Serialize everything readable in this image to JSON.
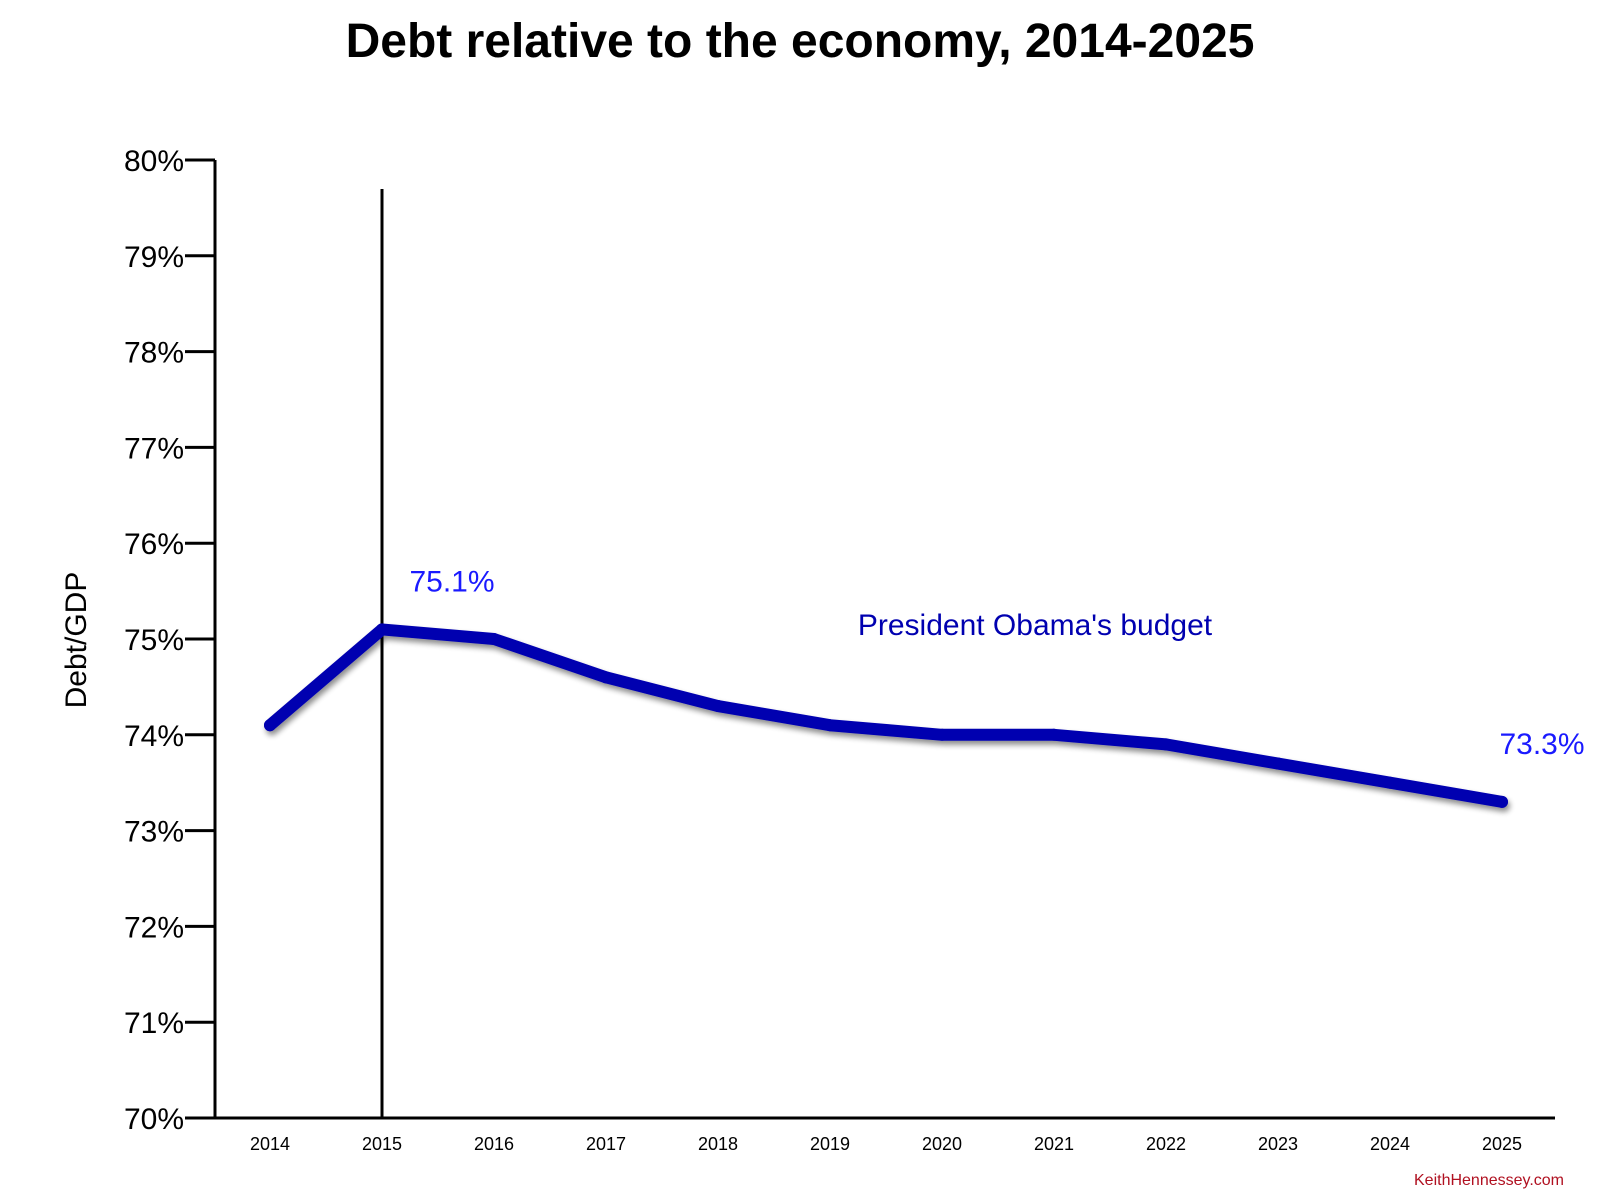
{
  "chart_data": {
    "type": "line",
    "title": "Debt relative to the economy, 2014-2025",
    "xlabel": "",
    "ylabel": "Debt/GDP",
    "x": [
      "2014",
      "2015",
      "2016",
      "2017",
      "2018",
      "2019",
      "2020",
      "2021",
      "2022",
      "2023",
      "2024",
      "2025"
    ],
    "series": [
      {
        "name": "President Obama's budget",
        "values": [
          74.1,
          75.1,
          75.0,
          74.6,
          74.3,
          74.1,
          74.0,
          74.0,
          73.9,
          73.7,
          73.5,
          73.3
        ],
        "color": "#0000b0"
      }
    ],
    "yticks": [
      "70%",
      "71%",
      "72%",
      "73%",
      "74%",
      "75%",
      "76%",
      "77%",
      "78%",
      "79%",
      "80%"
    ],
    "ylim": [
      70,
      80
    ],
    "grid": false,
    "legend": "none",
    "annotations": [
      {
        "text": "75.1%",
        "x": "2015",
        "y": 75.1,
        "color": "#1a1aff"
      },
      {
        "text": "73.3%",
        "x": "2025",
        "y": 73.3,
        "color": "#1a1aff"
      },
      {
        "text": "President Obama's budget",
        "x": "2019",
        "y": 74.5,
        "color": "#0000b0"
      }
    ],
    "reference_line_x": "2015"
  },
  "credit": "KeithHennessey.com"
}
